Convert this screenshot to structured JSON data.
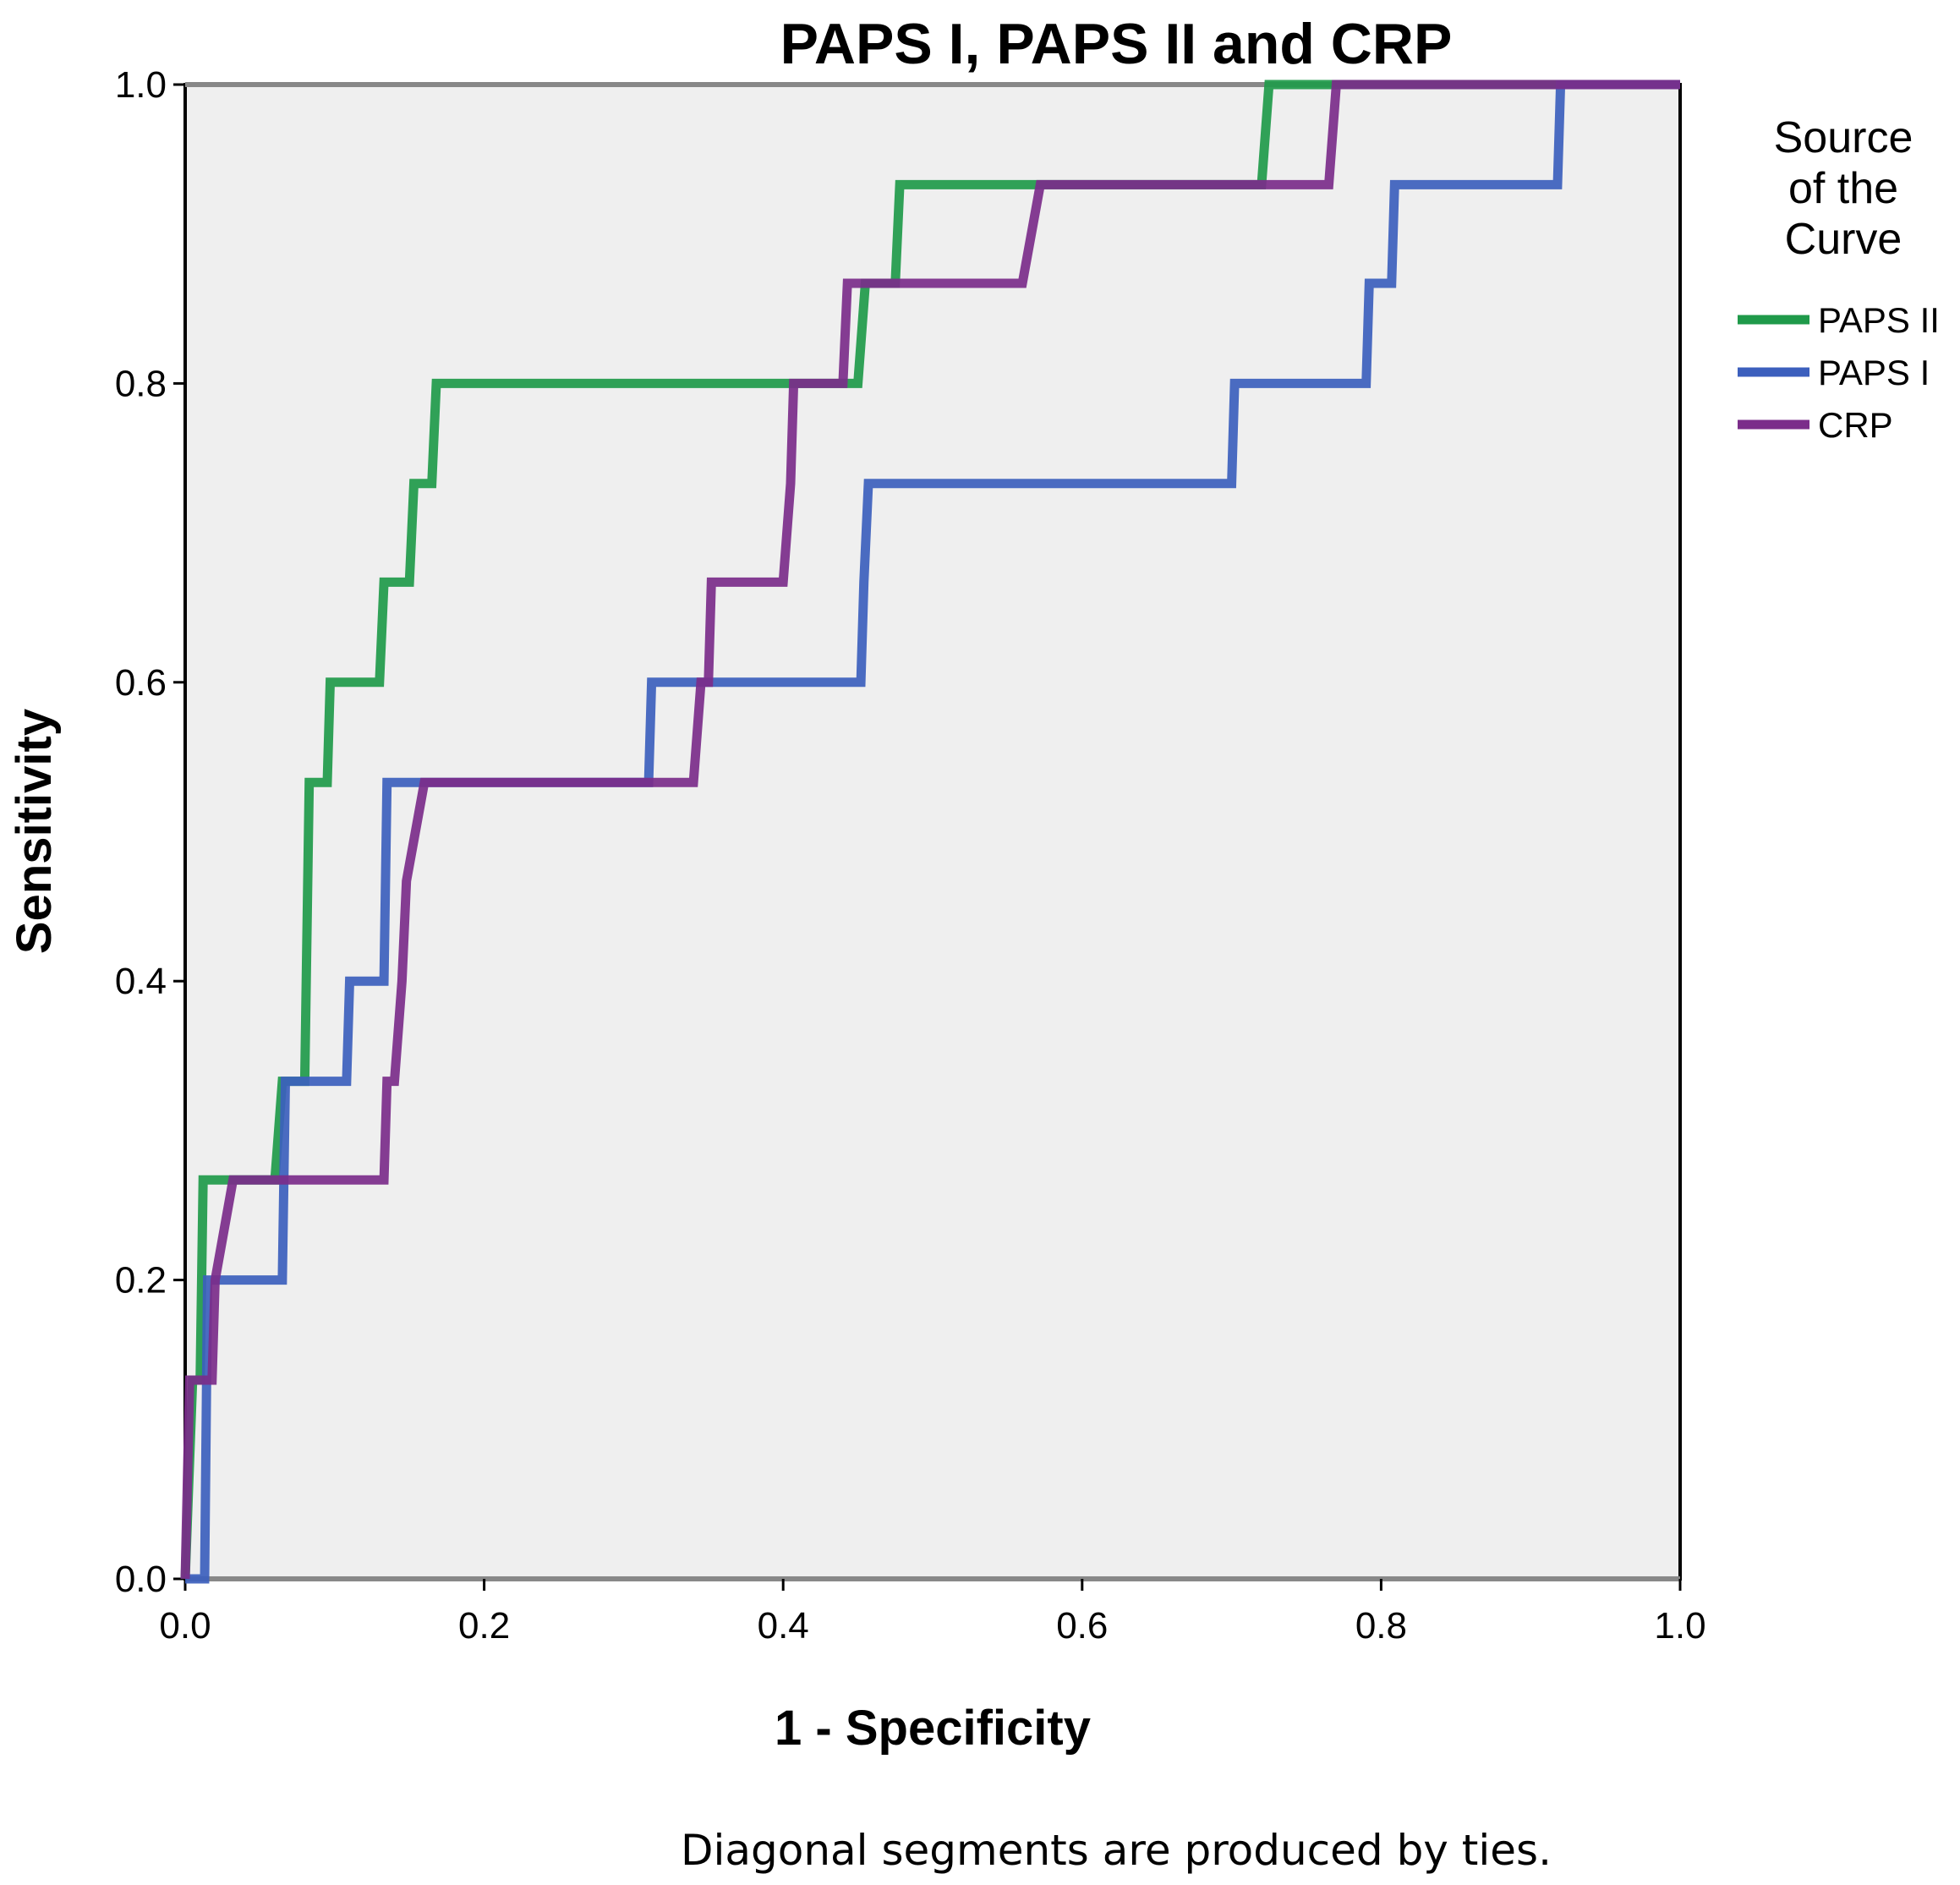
{
  "chart_data": {
    "type": "line",
    "title": "PAPS I, PAPS II and CRP",
    "xlabel": "1 - Specificity",
    "ylabel": "Sensitivity",
    "xlim": [
      0,
      1
    ],
    "ylim": [
      0,
      1
    ],
    "xticks": [
      "0.0",
      "0.2",
      "0.4",
      "0.6",
      "0.8",
      "1.0"
    ],
    "yticks": [
      "0.0",
      "0.2",
      "0.4",
      "0.6",
      "0.8",
      "1.0"
    ],
    "legend_title": "Source of the Curve",
    "legend_title_lines": [
      "Source",
      "of the",
      "Curve"
    ],
    "note": "Diagonal segments are produced by ties.",
    "series": [
      {
        "name": "PAPS II",
        "color": "#1f9a4a",
        "x": [
          0,
          0.005,
          0.01,
          0.012,
          0.06,
          0.065,
          0.08,
          0.083,
          0.095,
          0.097,
          0.13,
          0.133,
          0.15,
          0.153,
          0.165,
          0.168,
          0.4,
          0.45,
          0.455,
          0.475,
          0.478,
          0.57,
          0.72,
          0.725,
          0.77,
          1.0
        ],
        "y": [
          0,
          0.133,
          0.133,
          0.267,
          0.267,
          0.333,
          0.333,
          0.533,
          0.533,
          0.6,
          0.6,
          0.667,
          0.667,
          0.733,
          0.733,
          0.8,
          0.8,
          0.8,
          0.867,
          0.867,
          0.933,
          0.933,
          0.933,
          1.0,
          1.0,
          1.0
        ]
      },
      {
        "name": "PAPS I",
        "color": "#3c5fbd",
        "x": [
          0,
          0.013,
          0.015,
          0.065,
          0.067,
          0.108,
          0.11,
          0.133,
          0.135,
          0.15,
          0.31,
          0.312,
          0.452,
          0.454,
          0.457,
          0.7,
          0.702,
          0.79,
          0.792,
          0.807,
          0.809,
          0.918,
          0.92,
          1.0
        ],
        "y": [
          0,
          0,
          0.2,
          0.2,
          0.333,
          0.333,
          0.4,
          0.4,
          0.533,
          0.533,
          0.533,
          0.6,
          0.6,
          0.667,
          0.733,
          0.733,
          0.8,
          0.8,
          0.867,
          0.867,
          0.933,
          0.933,
          1.0,
          1.0
        ]
      },
      {
        "name": "CRP",
        "color": "#7b2d8a",
        "x": [
          0,
          0.003,
          0.018,
          0.02,
          0.032,
          0.133,
          0.135,
          0.14,
          0.145,
          0.148,
          0.16,
          0.32,
          0.34,
          0.345,
          0.35,
          0.352,
          0.4,
          0.405,
          0.407,
          0.44,
          0.443,
          0.56,
          0.572,
          0.765,
          0.77,
          1.0
        ],
        "y": [
          0,
          0.133,
          0.133,
          0.2,
          0.267,
          0.267,
          0.333,
          0.333,
          0.4,
          0.467,
          0.533,
          0.533,
          0.533,
          0.6,
          0.6,
          0.667,
          0.667,
          0.733,
          0.8,
          0.8,
          0.867,
          0.867,
          0.933,
          0.933,
          1.0,
          1.0
        ]
      }
    ]
  }
}
